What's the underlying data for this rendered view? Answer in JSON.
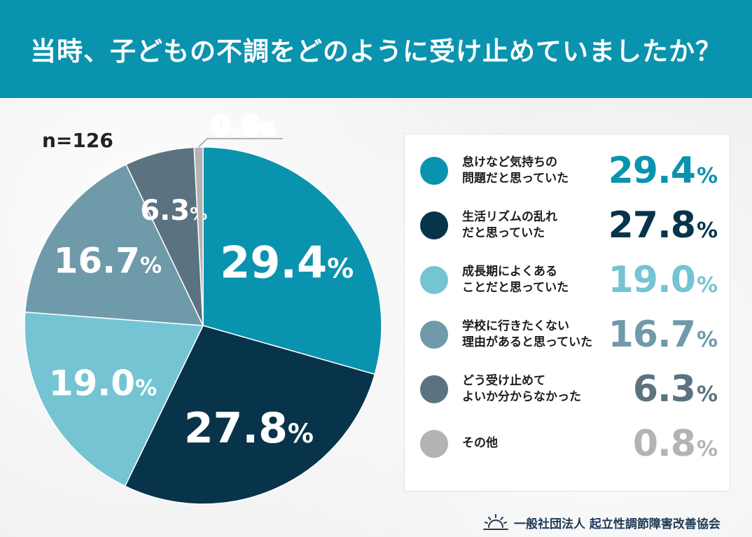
{
  "header": {
    "title": "当時、子どもの不調をどのように受け止めていましたか？"
  },
  "sample_size": "n=126",
  "footer": {
    "org": "一般社団法人 起立性調節障害改善協会"
  },
  "colors": {
    "header_bg": "#0a93ae",
    "slice_1": "#0a93ae",
    "slice_2": "#07344a",
    "slice_3": "#74c4d4",
    "slice_4": "#6f9aaa",
    "slice_5": "#5b7380",
    "slice_6": "#b3b3b3"
  },
  "chart_data": {
    "type": "pie",
    "categories": [
      "怠けなど気持ちの問題だと思っていた",
      "生活リズムの乱れだと思っていた",
      "成長期によくあることだと思っていた",
      "学校に行きたくない理由があると思っていた",
      "どう受け止めてよいか分からなかった",
      "その他"
    ],
    "values": [
      29.4,
      27.8,
      19.0,
      16.7,
      6.3,
      0.8
    ],
    "value_labels": [
      "29.4",
      "27.8",
      "19.0",
      "16.7",
      "6.3",
      "0.8"
    ],
    "unit": "%",
    "colors": [
      "#0a93ae",
      "#07344a",
      "#74c4d4",
      "#6f9aaa",
      "#5b7380",
      "#b3b3b3"
    ],
    "legend_placement": "right",
    "legend_lines": [
      [
        "怠けなど気持ちの",
        "問題だと思っていた"
      ],
      [
        "生活リズムの乱れ",
        "だと思っていた"
      ],
      [
        "成長期によくある",
        "ことだと思っていた"
      ],
      [
        "学校に行きたくない",
        "理由があると思っていた"
      ],
      [
        "どう受け止めて",
        "よいか分からなかった"
      ],
      [
        "その他"
      ]
    ]
  }
}
